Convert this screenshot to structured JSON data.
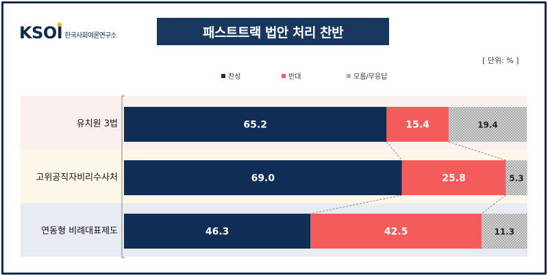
{
  "logo": {
    "word": "KSOI",
    "text": "한국사회여론연구소"
  },
  "title": "패스트트랙 법안 처리 찬반",
  "unit_note": "[ 단위: % ]",
  "colors": {
    "agree": "#0f2d55",
    "disagree": "#f45b5b",
    "unsure": "#bfbfbf",
    "frame": "#0d2b4e"
  },
  "chart_data": {
    "type": "bar",
    "orientation": "horizontal",
    "stacked": true,
    "title": "패스트트랙 법안 처리 찬반",
    "categories": [
      "유치원 3법",
      "고위공직자비리수사처",
      "연동형 비례대표제도"
    ],
    "series": [
      {
        "name": "찬성",
        "color": "#0f2d55",
        "values": [
          65.2,
          69.0,
          46.3
        ],
        "labels": [
          "65.2",
          "69.0",
          "46.3"
        ]
      },
      {
        "name": "반대",
        "color": "#f45b5b",
        "values": [
          15.4,
          25.8,
          42.5
        ],
        "labels": [
          "15.4",
          "25.8",
          "42.5"
        ]
      },
      {
        "name": "모름/무응답",
        "color": "#bfbfbf",
        "values": [
          19.4,
          5.3,
          11.3
        ],
        "labels": [
          "19.4",
          "5.3",
          "11.3"
        ]
      }
    ],
    "xlim": [
      0,
      100
    ],
    "legend_position": "top-center",
    "grid": false,
    "row_backgrounds": [
      "#faf1ee",
      "#fdf7ea",
      "#e8ecf2"
    ]
  }
}
